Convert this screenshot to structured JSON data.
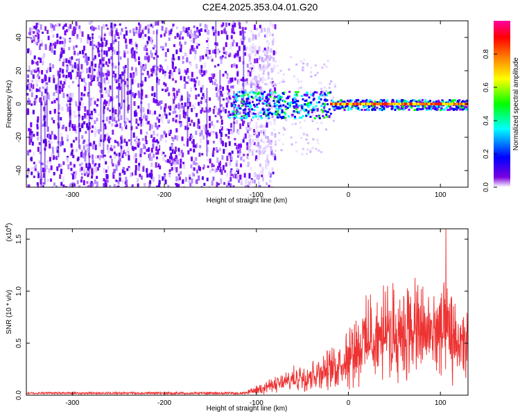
{
  "title": "C2E4.2025.353.04.01.G20",
  "chart_data": [
    {
      "type": "heatmap",
      "xlabel": "Height of straight line (km)",
      "ylabel": "Frequency (Hz)",
      "xlim": [
        -350,
        130
      ],
      "ylim": [
        -50,
        50
      ],
      "xticks": [
        -300,
        -200,
        -100,
        0,
        100
      ],
      "yticks": [
        -40,
        -20,
        0,
        20,
        40
      ],
      "noise_region_x": [
        -350,
        -100
      ],
      "signal_line_frequency_hz": 0,
      "colorbar": {
        "label": "Normalized spectral amplitude",
        "range": [
          0,
          1
        ],
        "ticks": [
          "0.0",
          "0.2",
          "0.4",
          "0.6",
          "0.8"
        ],
        "colors": [
          "#ffffff",
          "#7a00e0",
          "#0000ff",
          "#00ffff",
          "#00ff00",
          "#ffff00",
          "#ff8000",
          "#ff0000",
          "#ff00a0"
        ]
      }
    },
    {
      "type": "line",
      "xlabel": "Height of straight line (km)",
      "ylabel": "SNR (10 * v/v)",
      "y_multiplier": "(x10",
      "y_multiplier_exp": "4",
      "y_multiplier_close": ")",
      "xlim": [
        -350,
        130
      ],
      "ylim": [
        0,
        1.6
      ],
      "xticks": [
        -300,
        -200,
        -100,
        0,
        100
      ],
      "yticks": [
        "0.0",
        "0.5",
        "1.0",
        "1.5"
      ],
      "series": [
        {
          "name": "SNR",
          "color": "#ee3333",
          "x": [
            -350,
            -300,
            -250,
            -200,
            -150,
            -110,
            -100,
            -90,
            -80,
            -70,
            -60,
            -50,
            -40,
            -30,
            -20,
            -10,
            0,
            10,
            20,
            30,
            40,
            50,
            60,
            70,
            80,
            90,
            100,
            110,
            120,
            130
          ],
          "values": [
            0.02,
            0.02,
            0.02,
            0.02,
            0.02,
            0.03,
            0.05,
            0.08,
            0.1,
            0.12,
            0.15,
            0.18,
            0.2,
            0.22,
            0.25,
            0.3,
            0.4,
            0.48,
            0.52,
            0.55,
            0.58,
            0.6,
            0.62,
            0.63,
            0.6,
            0.6,
            0.62,
            0.55,
            0.5,
            0.45
          ],
          "peak": {
            "x": 106,
            "y": 1.6
          }
        }
      ]
    }
  ]
}
